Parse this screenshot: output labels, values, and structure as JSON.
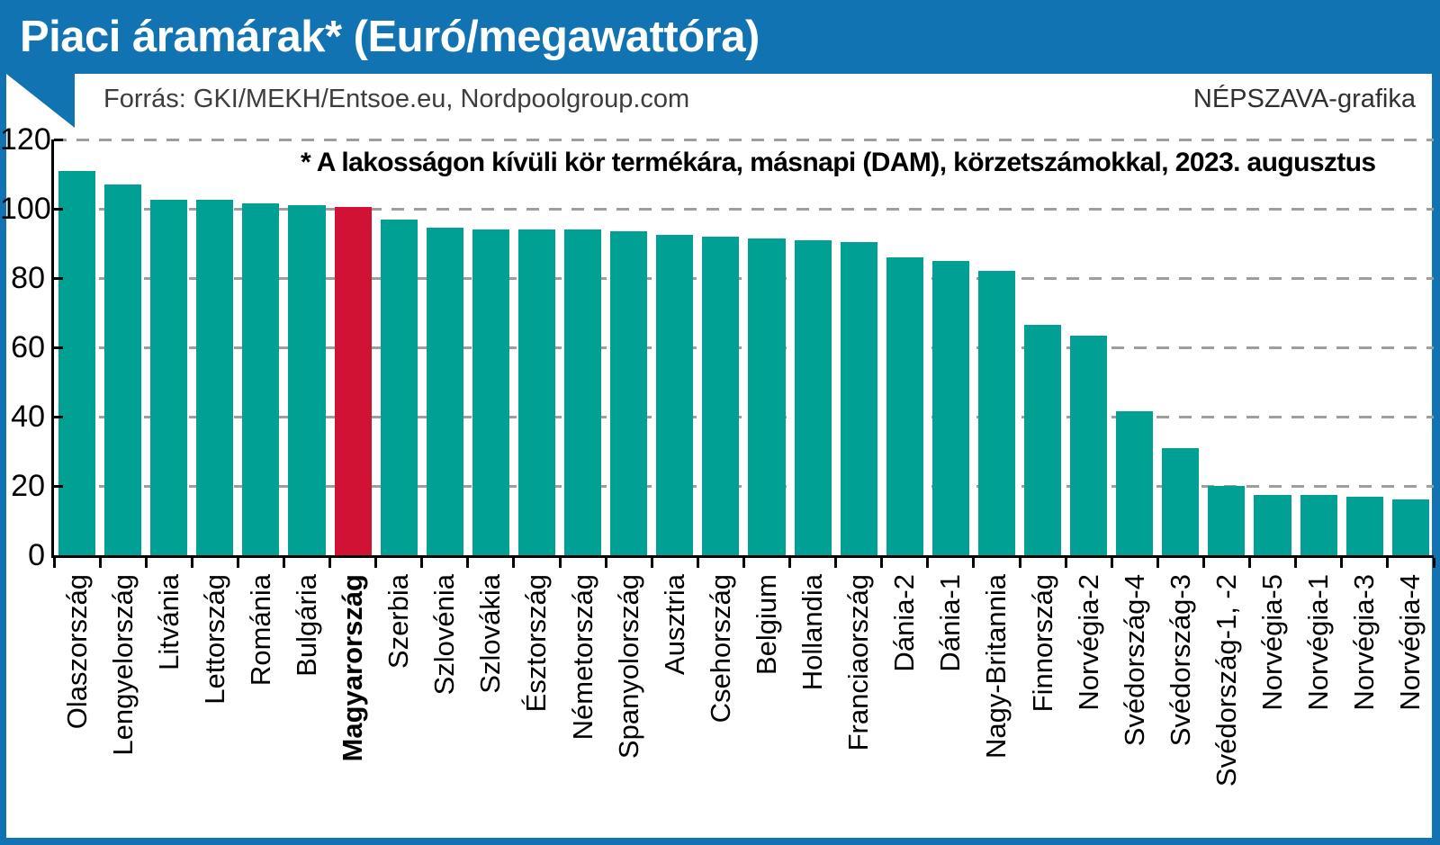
{
  "header": {
    "title": "Piaci áramárak* (Euró/megawattóra)"
  },
  "meta": {
    "source": "Forrás: GKI/MEKH/Entsoe.eu, Nordpoolgroup.com",
    "credit": "NÉPSZAVA-grafika"
  },
  "annotation": "* A lakosságon kívüli kör termékára, másnapi (DAM), körzetszámokkal, 2023. augusztus",
  "colors": {
    "accent_blue": "#1173b2",
    "bar_teal": "#00a094",
    "bar_red": "#d11235",
    "grid_gray": "#9e9e9e",
    "axis_black": "#000000"
  },
  "chart_data": {
    "type": "bar",
    "title": "Piaci áramárak* (Euró/megawattóra)",
    "subtitle": "* A lakosságon kívüli kör termékára, másnapi (DAM), körzetszámokkal, 2023. augusztus",
    "unit": "Euró/megawattóra",
    "categories": [
      "Olaszország",
      "Lengyelország",
      "Litvánia",
      "Lettország",
      "Románia",
      "Bulgária",
      "Magyarország",
      "Szerbia",
      "Szlovénia",
      "Szlovákia",
      "Észtország",
      "Németország",
      "Spanyolország",
      "Ausztria",
      "Csehország",
      "Belgium",
      "Hollandia",
      "Franciaország",
      "Dánia-2",
      "Dánia-1",
      "Nagy-Britannia",
      "Finnország",
      "Norvégia-2",
      "Svédország-4",
      "Svédország-3",
      "Svédország-1, -2",
      "Norvégia-5",
      "Norvégia-1",
      "Norvégia-3",
      "Norvégia-4"
    ],
    "values": [
      111,
      107,
      102.5,
      102.5,
      101.5,
      101,
      100.5,
      97,
      94.5,
      94,
      94,
      94,
      93.5,
      92.5,
      92,
      91.5,
      91,
      90.5,
      86,
      85,
      82,
      66.5,
      63.5,
      41.5,
      31,
      20,
      17.5,
      17.5,
      17,
      16
    ],
    "highlight_category": "Magyarország",
    "ylim": [
      0,
      120
    ],
    "yticks": [
      0,
      20,
      40,
      60,
      80,
      100,
      120
    ],
    "grid": "dashed-horizontal",
    "legend": "none"
  }
}
